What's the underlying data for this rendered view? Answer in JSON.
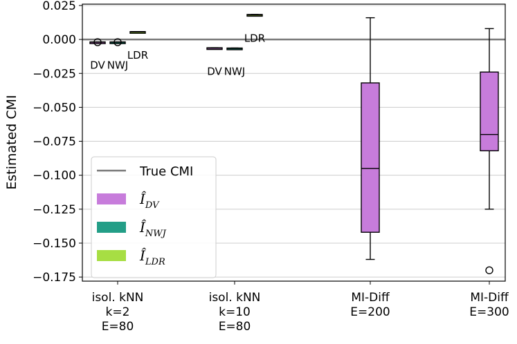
{
  "chart_data": {
    "type": "box",
    "title": "",
    "ylabel": "Estimated CMI",
    "ylim": [
      -0.178,
      0.026
    ],
    "yticks": [
      0.025,
      0.0,
      -0.025,
      -0.05,
      -0.075,
      -0.1,
      -0.125,
      -0.15,
      -0.175
    ],
    "ytick_labels": [
      "0.025",
      "0.000",
      "−0.025",
      "−0.050",
      "−0.075",
      "−0.100",
      "−0.125",
      "−0.150",
      "−0.175"
    ],
    "grid": "horizontal",
    "true_cmi": 0.0,
    "groups": [
      {
        "label_lines": [
          "isol. kNN",
          "k=2",
          "E=80"
        ],
        "boxes": [
          {
            "estimator": "DV",
            "annotation": "DV",
            "annotation_side": "below",
            "q1": -0.0022,
            "median": -0.002,
            "q3": -0.0018,
            "whisker_low": -0.0022,
            "whisker_high": -0.0018,
            "outliers": [
              -0.002
            ]
          },
          {
            "estimator": "NWJ",
            "annotation": "NWJ",
            "annotation_side": "below",
            "q1": -0.0022,
            "median": -0.002,
            "q3": -0.0018,
            "whisker_low": -0.0022,
            "whisker_high": -0.0018,
            "outliers": [
              -0.002
            ]
          },
          {
            "estimator": "LDR",
            "annotation": "LDR",
            "annotation_side": "below",
            "q1": 0.0052,
            "median": 0.0055,
            "q3": 0.0058,
            "whisker_low": 0.0052,
            "whisker_high": 0.0058,
            "outliers": []
          }
        ]
      },
      {
        "label_lines": [
          "isol. kNN",
          "k=10",
          "E=80"
        ],
        "boxes": [
          {
            "estimator": "DV",
            "annotation": "DV",
            "annotation_side": "below",
            "q1": -0.0067,
            "median": -0.0064,
            "q3": -0.0061,
            "whisker_low": -0.0067,
            "whisker_high": -0.0061,
            "outliers": []
          },
          {
            "estimator": "NWJ",
            "annotation": "NWJ",
            "annotation_side": "below",
            "q1": -0.0069,
            "median": -0.0066,
            "q3": -0.0063,
            "whisker_low": -0.0069,
            "whisker_high": -0.0063,
            "outliers": []
          },
          {
            "estimator": "LDR",
            "annotation": "LDR",
            "annotation_side": "below",
            "q1": 0.0176,
            "median": 0.018,
            "q3": 0.0184,
            "whisker_low": 0.0176,
            "whisker_high": 0.0184,
            "outliers": []
          }
        ]
      },
      {
        "label_lines": [
          "MI-Diff",
          "E=200"
        ],
        "boxes": [
          {
            "estimator": "DV",
            "annotation": "",
            "annotation_side": "",
            "q1": -0.142,
            "median": -0.095,
            "q3": -0.032,
            "whisker_low": -0.162,
            "whisker_high": 0.016,
            "outliers": []
          }
        ]
      },
      {
        "label_lines": [
          "MI-Diff",
          "E=300"
        ],
        "boxes": [
          {
            "estimator": "DV",
            "annotation": "",
            "annotation_side": "",
            "q1": -0.082,
            "median": -0.07,
            "q3": -0.024,
            "whisker_low": -0.125,
            "whisker_high": 0.008,
            "outliers": [
              -0.17
            ]
          }
        ]
      }
    ],
    "legend": {
      "position": "lower-left",
      "entries": [
        {
          "kind": "line",
          "label": "True CMI",
          "color": "#777777"
        },
        {
          "kind": "patch",
          "symbol": "Î",
          "subscript": "DV",
          "color": "#c77cdb"
        },
        {
          "kind": "patch",
          "symbol": "Î",
          "subscript": "NWJ",
          "color": "#239e87"
        },
        {
          "kind": "patch",
          "symbol": "Î",
          "subscript": "LDR",
          "color": "#a7de43"
        }
      ]
    },
    "colors": {
      "DV": "#c77cdb",
      "NWJ": "#239e87",
      "LDR": "#a7de43",
      "true_line": "#777777",
      "grid": "#cccccc"
    }
  }
}
